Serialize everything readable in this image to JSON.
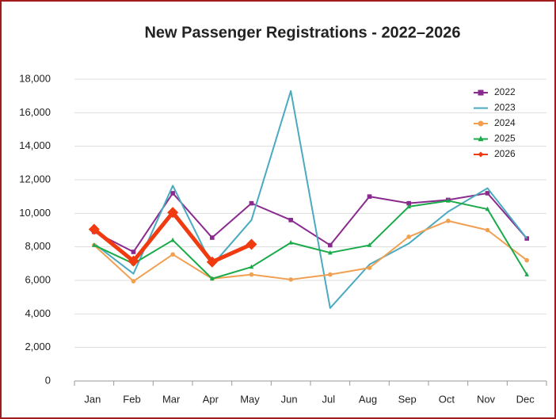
{
  "chart_data": {
    "type": "line",
    "title": "New Passenger Registrations - 2022–2026",
    "categories": [
      "Jan",
      "Feb",
      "Mar",
      "Apr",
      "May",
      "Jun",
      "Jul",
      "Aug",
      "Sep",
      "Oct",
      "Nov",
      "Dec"
    ],
    "ylim": [
      0,
      18000
    ],
    "yticks": [
      0,
      {
        "value": 2000,
        "label": "2,000"
      },
      {
        "value": 4000,
        "label": "4,000"
      },
      {
        "value": 6000,
        "label": "6,000"
      },
      {
        "value": 8000,
        "label": "8,000"
      },
      {
        "value": 10000,
        "label": "10,000"
      },
      {
        "value": 12000,
        "label": "12,000"
      },
      {
        "value": 14000,
        "label": "14,000"
      },
      {
        "value": 16000,
        "label": "16,000"
      },
      {
        "value": 18000,
        "label": "18,000"
      }
    ],
    "grid": true,
    "legend": "upper right",
    "series": [
      {
        "name": "2022",
        "color": "#8b2a8e",
        "marker": "square",
        "values": [
          8900,
          7700,
          11200,
          8550,
          10600,
          9600,
          8100,
          11000,
          10600,
          10800,
          11200,
          8500
        ]
      },
      {
        "name": "2023",
        "color": "#4aaac0",
        "marker": "none",
        "values": [
          8200,
          6400,
          11650,
          6900,
          9600,
          17300,
          4350,
          6950,
          8200,
          10100,
          11500,
          8500
        ]
      },
      {
        "name": "2024",
        "color": "#f0a050",
        "marker": "circle",
        "values": [
          8100,
          5950,
          7550,
          6100,
          6350,
          6050,
          6350,
          6750,
          8600,
          9550,
          9000,
          7200
        ]
      },
      {
        "name": "2025",
        "color": "#1aaa4a",
        "marker": "triangle",
        "values": [
          8100,
          7000,
          8400,
          6100,
          6800,
          8250,
          7650,
          8100,
          10400,
          10750,
          10250,
          6350
        ]
      },
      {
        "name": "2026",
        "color": "#f03a10",
        "marker": "diamond",
        "values": [
          9050,
          7150,
          10050,
          7100,
          8150,
          null,
          null,
          null,
          null,
          null,
          null,
          null
        ]
      }
    ]
  }
}
